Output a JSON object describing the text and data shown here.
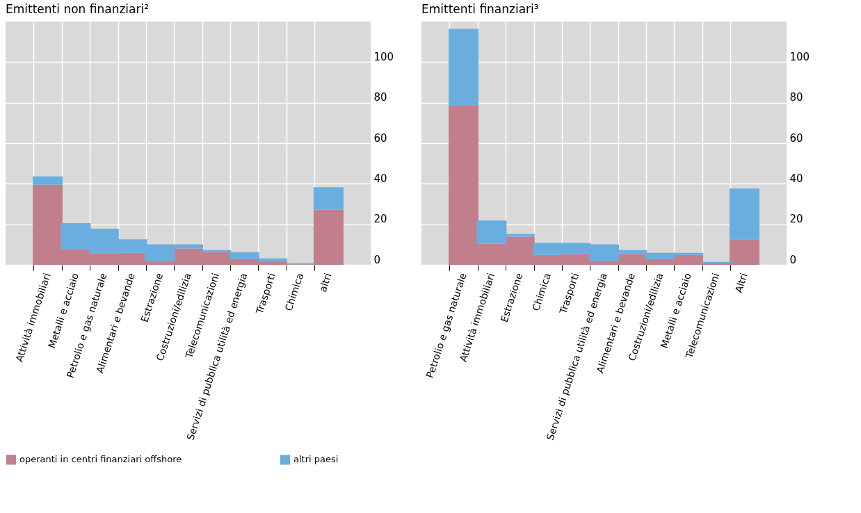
{
  "chart_data": [
    {
      "type": "bar",
      "title": "Emittenti non finanziari²",
      "stacked": true,
      "grid": true,
      "legend": "bottom",
      "categories": [
        "Attività immobiliari",
        "Metalli e acciaio",
        "Petrolio e gas naturale",
        "Alimentari e bevande",
        "Estrazione",
        "Costruzioni/edilizia",
        "Telecomunicazioni",
        "Servizi di pubblica utilità ed energia",
        "Trasporti",
        "Chimica",
        "altri"
      ],
      "series": [
        {
          "name": "operanti in centri finanziari offshore",
          "color": "#c17f8d",
          "values": [
            39.5,
            7.7,
            5.7,
            5.9,
            1.8,
            8.1,
            6.3,
            2.8,
            1.8,
            0.3,
            27.3
          ]
        },
        {
          "name": "altri paesi",
          "color": "#6aaee0",
          "values": [
            4.1,
            12.9,
            12.1,
            6.7,
            8.3,
            2.0,
            1.0,
            3.5,
            1.4,
            0.5,
            11.0
          ]
        }
      ],
      "ylim": [
        0,
        120
      ],
      "yticks": [
        0,
        20,
        40,
        60,
        80,
        100
      ]
    },
    {
      "type": "bar",
      "title": "Emittenti finanziari³",
      "stacked": true,
      "grid": true,
      "legend": "bottom",
      "categories": [
        "Petrolio e gas naturale",
        "Attività immobiliari",
        "Estrazione",
        "Chimica",
        "Trasporti",
        "Servizi di pubblica utilità ed energia",
        "Alimentari e bevande",
        "Costruzioni/edilizia",
        "Metalli e acciaio",
        "Telecomunicazioni",
        "Altri"
      ],
      "series": [
        {
          "name": "operanti in centri finanziari offshore",
          "color": "#c17f8d",
          "values": [
            78.8,
            10.4,
            13.9,
            4.9,
            5.3,
            2.0,
            5.3,
            2.8,
            4.9,
            0.7,
            12.6
          ]
        },
        {
          "name": "altri paesi",
          "color": "#6aaee0",
          "values": [
            37.6,
            11.5,
            1.4,
            5.9,
            5.5,
            8.1,
            2.0,
            3.1,
            1.0,
            0.8,
            25.0
          ]
        }
      ],
      "ylim": [
        0,
        120
      ],
      "yticks": [
        0,
        20,
        40,
        60,
        80,
        100
      ]
    }
  ]
}
